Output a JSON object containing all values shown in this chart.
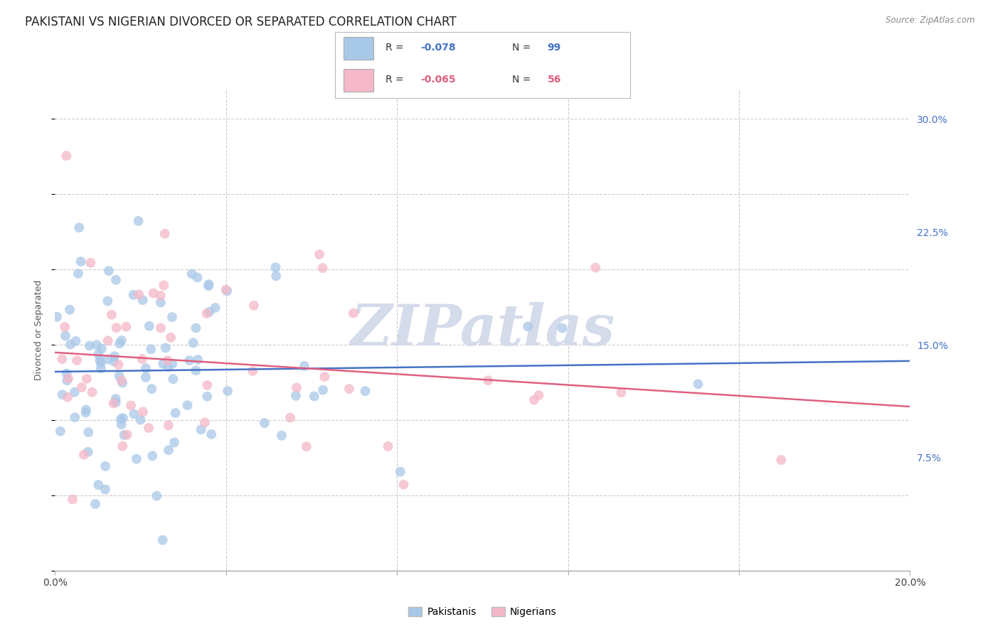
{
  "title": "PAKISTANI VS NIGERIAN DIVORCED OR SEPARATED CORRELATION CHART",
  "source": "Source: ZipAtlas.com",
  "ylabel_text": "Divorced or Separated",
  "xlim": [
    0.0,
    0.2
  ],
  "ylim": [
    0.0,
    0.32
  ],
  "xticks": [
    0.0,
    0.04,
    0.08,
    0.12,
    0.16,
    0.2
  ],
  "xticklabels": [
    "0.0%",
    "",
    "",
    "",
    "",
    "20.0%"
  ],
  "yticks": [
    0.075,
    0.15,
    0.225,
    0.3
  ],
  "yticklabels": [
    "7.5%",
    "15.0%",
    "22.5%",
    "30.0%"
  ],
  "pakistani_color": "#a8c8e8",
  "nigerian_color": "#f4b8c8",
  "trend_pakistani_color": "#4472c4",
  "trend_nigerian_color": "#e06080",
  "tick_color_right": "#4472c4",
  "pakistani_R": -0.078,
  "pakistani_N": 99,
  "nigerian_R": -0.065,
  "nigerian_N": 56,
  "watermark_text": "ZIPatlas",
  "watermark_color": "#d0d8e8",
  "background_color": "#ffffff",
  "grid_color": "#cccccc",
  "title_fontsize": 12,
  "axis_label_fontsize": 9,
  "tick_fontsize": 10,
  "legend_r_color": "#4472c4",
  "legend_n_color": "#4472c4"
}
